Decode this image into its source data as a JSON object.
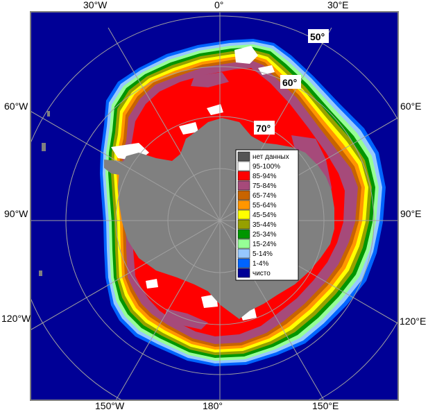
{
  "longitude_labels": {
    "top": [
      "30°W",
      "0°",
      "30°E"
    ],
    "left": [
      "60°W",
      "90°W",
      "120°W"
    ],
    "right": [
      "60°E",
      "90°E",
      "120°E"
    ],
    "bottom": [
      "150°W",
      "180°",
      "150°E"
    ]
  },
  "latitude_labels": [
    "50°",
    "60°",
    "70°"
  ],
  "legend": {
    "items": [
      {
        "label": "нет данных",
        "color": "#555555"
      },
      {
        "label": "95-100%",
        "color": "#ffffff"
      },
      {
        "label": "85-94%",
        "color": "#ff0000"
      },
      {
        "label": "75-84%",
        "color": "#a64a7a"
      },
      {
        "label": "65-74%",
        "color": "#c86400"
      },
      {
        "label": "55-64%",
        "color": "#ff9600"
      },
      {
        "label": "45-54%",
        "color": "#ffff00"
      },
      {
        "label": "35-44%",
        "color": "#96a000"
      },
      {
        "label": "25-34%",
        "color": "#009600"
      },
      {
        "label": "15-24%",
        "color": "#96ff96"
      },
      {
        "label": "5-14%",
        "color": "#96c8ff"
      },
      {
        "label": "1-4%",
        "color": "#0064ff"
      },
      {
        "label": "чисто",
        "color": "#000096"
      }
    ]
  },
  "colors": {
    "ocean": "#000096",
    "land": "#808080",
    "frame": "#808080",
    "graticule": "#a0a0a0"
  }
}
